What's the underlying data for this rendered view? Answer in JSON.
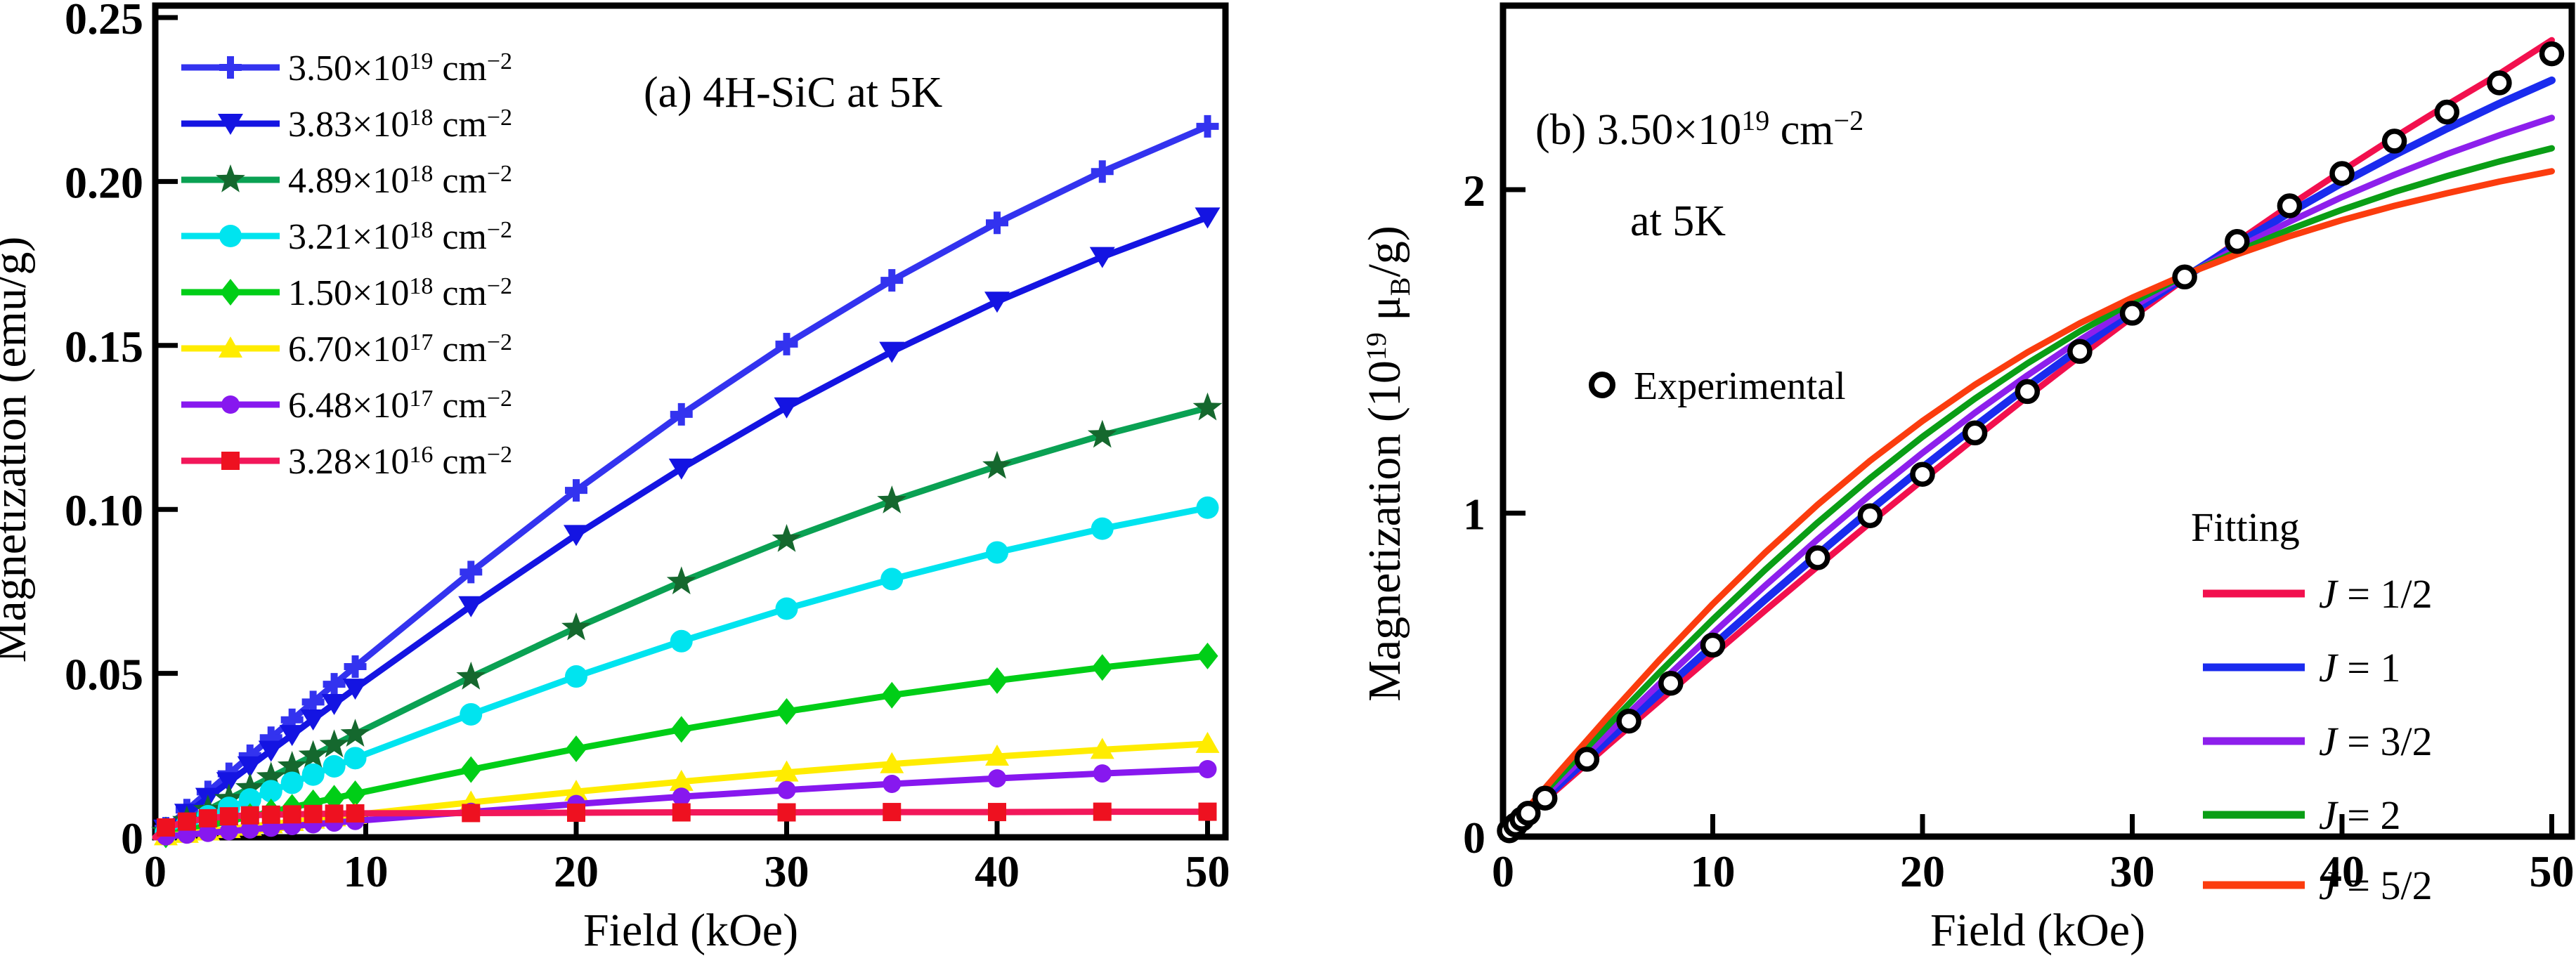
{
  "figure": {
    "background": "#ffffff",
    "border_color": "#000000"
  },
  "chart_data": [
    {
      "id": "panel-a",
      "type": "line",
      "title": "(a) 4H-SiC at 5K",
      "xlabel": "Field (kOe)",
      "ylabel": "Magnetization (emu/g)",
      "xlim": [
        0,
        50.8
      ],
      "ylim": [
        0,
        0.2536
      ],
      "grid": false,
      "legend_position": "upper-left",
      "xticks": [
        0,
        10,
        20,
        30,
        40,
        50
      ],
      "xtick_labels": [
        "0",
        "10",
        "20",
        "30",
        "40",
        "50"
      ],
      "yticks": [
        0,
        0.05,
        0.1,
        0.15,
        0.2,
        0.25
      ],
      "ytick_labels": [
        "0",
        "0.05",
        "0.10",
        "0.15",
        "0.20",
        "0.25"
      ],
      "x": [
        0,
        0.5,
        1.5,
        2.5,
        3.5,
        4.5,
        5.5,
        6.5,
        7.5,
        8.5,
        9.5,
        15,
        20,
        25,
        30,
        35,
        40,
        45,
        50
      ],
      "series": [
        {
          "name": "3.50e19 cm-2",
          "marker": "plus",
          "color": "#3333ef",
          "marker_color": "#3333ef",
          "legend": {
            "c": "3.50",
            "t": "×10",
            "e": "19",
            "u": " cm",
            "ue": "−2"
          },
          "values": [
            0,
            0.00277,
            0.00831,
            0.01384,
            0.01936,
            0.02487,
            0.03036,
            0.03582,
            0.04127,
            0.04668,
            0.05206,
            0.08089,
            0.10579,
            0.129,
            0.1504,
            0.16986,
            0.18739,
            0.20302,
            0.21682
          ]
        },
        {
          "name": "3.83e18 cm-2",
          "marker": "tri-down",
          "color": "#1414e2",
          "marker_color": "#1414e2",
          "legend": {
            "c": "3.83",
            "t": "×10",
            "e": "18",
            "u": " cm",
            "ue": "−2"
          },
          "values": [
            0,
            0.00242,
            0.00724,
            0.01207,
            0.01688,
            0.02169,
            0.02647,
            0.03124,
            0.03599,
            0.04071,
            0.0454,
            0.07054,
            0.09225,
            0.11249,
            0.13115,
            0.14812,
            0.1634,
            0.17703,
            0.18907
          ]
        },
        {
          "name": "4.89e18 cm-2",
          "marker": "star",
          "color": "#0aa153",
          "marker_color": "#15682e",
          "legend": {
            "c": "4.89",
            "t": "×10",
            "e": "18",
            "u": " cm",
            "ue": "−2"
          },
          "values": [
            0,
            0.00167,
            0.00502,
            0.00836,
            0.01169,
            0.01502,
            0.01834,
            0.02164,
            0.02493,
            0.0282,
            0.03145,
            0.04886,
            0.0639,
            0.07792,
            0.09084,
            0.10259,
            0.11318,
            0.12262,
            0.13095
          ]
        },
        {
          "name": "3.21e18 cm-2",
          "marker": "circle",
          "color": "#00e4ef",
          "marker_color": "#00e4ef",
          "legend": {
            "c": "3.21",
            "t": "×10",
            "e": "18",
            "u": " cm",
            "ue": "−2"
          },
          "values": [
            0,
            0.00128,
            0.00385,
            0.00642,
            0.00898,
            0.01153,
            0.01407,
            0.01661,
            0.01913,
            0.02164,
            0.02414,
            0.0375,
            0.04905,
            0.05981,
            0.06973,
            0.07875,
            0.08688,
            0.09412,
            0.10052
          ]
        },
        {
          "name": "1.50e18 cm-2",
          "marker": "diamond",
          "color": "#00ce17",
          "marker_color": "#00ce17",
          "legend": {
            "c": "1.50",
            "t": "×10",
            "e": "18",
            "u": " cm",
            "ue": "−2"
          },
          "values": [
            0,
            0.00071,
            0.00212,
            0.00353,
            0.00494,
            0.00634,
            0.00774,
            0.00914,
            0.01053,
            0.01191,
            0.01328,
            0.02064,
            0.02699,
            0.03291,
            0.03837,
            0.04333,
            0.0478,
            0.05179,
            0.05531
          ]
        },
        {
          "name": "6.70e17 cm-2",
          "marker": "tri-up",
          "color": "#ffec00",
          "marker_color": "#ffec00",
          "legend": {
            "c": "6.70",
            "t": "×10",
            "e": "17",
            "u": " cm",
            "ue": "−2"
          },
          "values": [
            0,
            0.00036,
            0.00109,
            0.00182,
            0.00255,
            0.00327,
            0.00399,
            0.00471,
            0.00543,
            0.00614,
            0.00685,
            0.01064,
            0.01391,
            0.01696,
            0.01978,
            0.02234,
            0.02464,
            0.0267,
            0.02851
          ]
        },
        {
          "name": "6.48e17 cm-2",
          "marker": "dot",
          "color": "#8718ef",
          "marker_color": "#8718ef",
          "legend": {
            "c": "6.48",
            "t": "×10",
            "e": "17",
            "u": " cm",
            "ue": "−2"
          },
          "values": [
            0,
            0.00027,
            0.0008,
            0.00133,
            0.00186,
            0.00239,
            0.00291,
            0.00344,
            0.00396,
            0.00448,
            0.00499,
            0.00776,
            0.01015,
            0.01237,
            0.01442,
            0.01629,
            0.01797,
            0.01947,
            0.02079
          ]
        },
        {
          "name": "3.28e16 cm-2",
          "marker": "square",
          "color": "#f2175a",
          "marker_color": "#ee1120",
          "legend": {
            "c": "3.28",
            "t": "×10",
            "e": "16",
            "u": " cm",
            "ue": "−2"
          },
          "values": [
            0,
            0.003,
            0.0048,
            0.0058,
            0.0064,
            0.0067,
            0.0069,
            0.007,
            0.0071,
            0.0072,
            0.0073,
            0.0074,
            0.0075,
            0.0076,
            0.0076,
            0.0077,
            0.0077,
            0.0078,
            0.0078
          ]
        }
      ]
    },
    {
      "id": "panel-b",
      "type": "line+scatter",
      "title_parts": {
        "p1": "(b) 3.50×10",
        "sup1": "19",
        "p2": " cm",
        "sup2": "−2",
        "line2": "at 5K"
      },
      "xlabel": "Field (kOe)",
      "ylabel_parts": {
        "p1": "Magnetization (10",
        "sup": "19",
        "p2": " μ",
        "sub": "B",
        "p3": "/g)"
      },
      "xlim": [
        0,
        50.95
      ],
      "ylim": [
        0,
        2.57
      ],
      "grid": false,
      "xticks": [
        0,
        10,
        20,
        30,
        40,
        50
      ],
      "xtick_labels": [
        "0",
        "10",
        "20",
        "30",
        "40",
        "50"
      ],
      "yticks": [
        0,
        1,
        2
      ],
      "ytick_labels": [
        "0",
        "1",
        "2"
      ],
      "experimental": {
        "label": "Experimental",
        "color": "#000000",
        "x": [
          0.3,
          0.6,
          0.9,
          1.2,
          2,
          4,
          6,
          8,
          10,
          15,
          17.5,
          20,
          22.5,
          25,
          27.5,
          30,
          32.5,
          35,
          37.5,
          40,
          42.5,
          45,
          47.5,
          50
        ],
        "y": [
          0.018,
          0.036,
          0.054,
          0.072,
          0.119,
          0.239,
          0.357,
          0.474,
          0.592,
          0.862,
          0.992,
          1.12,
          1.248,
          1.376,
          1.5,
          1.618,
          1.73,
          1.84,
          1.95,
          2.05,
          2.15,
          2.24,
          2.33,
          2.42
        ]
      },
      "fitting_label": "Fitting",
      "x": [
        0,
        2.5,
        5,
        7.5,
        10,
        12.5,
        15,
        17.5,
        20,
        22.5,
        25,
        27.5,
        30,
        32.5,
        35,
        37.5,
        40,
        42.5,
        45,
        47.5,
        50
      ],
      "series": [
        {
          "name": "J = 1/2",
          "legend": {
            "v": "J",
            "r": " = 1/2"
          },
          "color": "#f2104e",
          "width": 9,
          "values": [
            0,
            0.141,
            0.282,
            0.422,
            0.561,
            0.699,
            0.835,
            0.97,
            1.102,
            1.232,
            1.36,
            1.485,
            1.606,
            1.724,
            1.839,
            1.951,
            2.058,
            2.162,
            2.262,
            2.358,
            2.462
          ]
        },
        {
          "name": "J = 1",
          "legend": {
            "v": "J",
            "r": " = 1"
          },
          "color": "#1a2bee",
          "width": 11,
          "values": [
            0,
            0.149,
            0.298,
            0.445,
            0.59,
            0.733,
            0.872,
            1.009,
            1.141,
            1.268,
            1.391,
            1.509,
            1.622,
            1.729,
            1.832,
            1.929,
            2.021,
            2.107,
            2.189,
            2.266,
            2.338
          ]
        },
        {
          "name": "J = 3/2",
          "legend": {
            "v": "J",
            "r": " = 3/2"
          },
          "color": "#8d1fec",
          "width": 9,
          "values": [
            0,
            0.16,
            0.319,
            0.475,
            0.628,
            0.776,
            0.919,
            1.056,
            1.186,
            1.31,
            1.426,
            1.535,
            1.637,
            1.732,
            1.82,
            1.901,
            1.977,
            2.046,
            2.11,
            2.168,
            2.222
          ]
        },
        {
          "name": "J = 2",
          "legend": {
            "v": "J",
            "r": " = 2"
          },
          "color": "#0a9e15",
          "width": 9,
          "values": [
            0,
            0.173,
            0.343,
            0.51,
            0.671,
            0.825,
            0.971,
            1.108,
            1.236,
            1.354,
            1.463,
            1.562,
            1.652,
            1.735,
            1.809,
            1.877,
            1.938,
            1.993,
            2.042,
            2.087,
            2.128
          ]
        },
        {
          "name": "J = 5/2",
          "legend": {
            "v": "J",
            "r": " = 5/2"
          },
          "color": "#fb3c0e",
          "width": 9,
          "values": [
            0,
            0.187,
            0.371,
            0.549,
            0.719,
            0.878,
            1.026,
            1.162,
            1.285,
            1.397,
            1.497,
            1.587,
            1.666,
            1.737,
            1.8,
            1.856,
            1.906,
            1.95,
            1.989,
            2.025,
            2.057
          ]
        }
      ]
    }
  ]
}
